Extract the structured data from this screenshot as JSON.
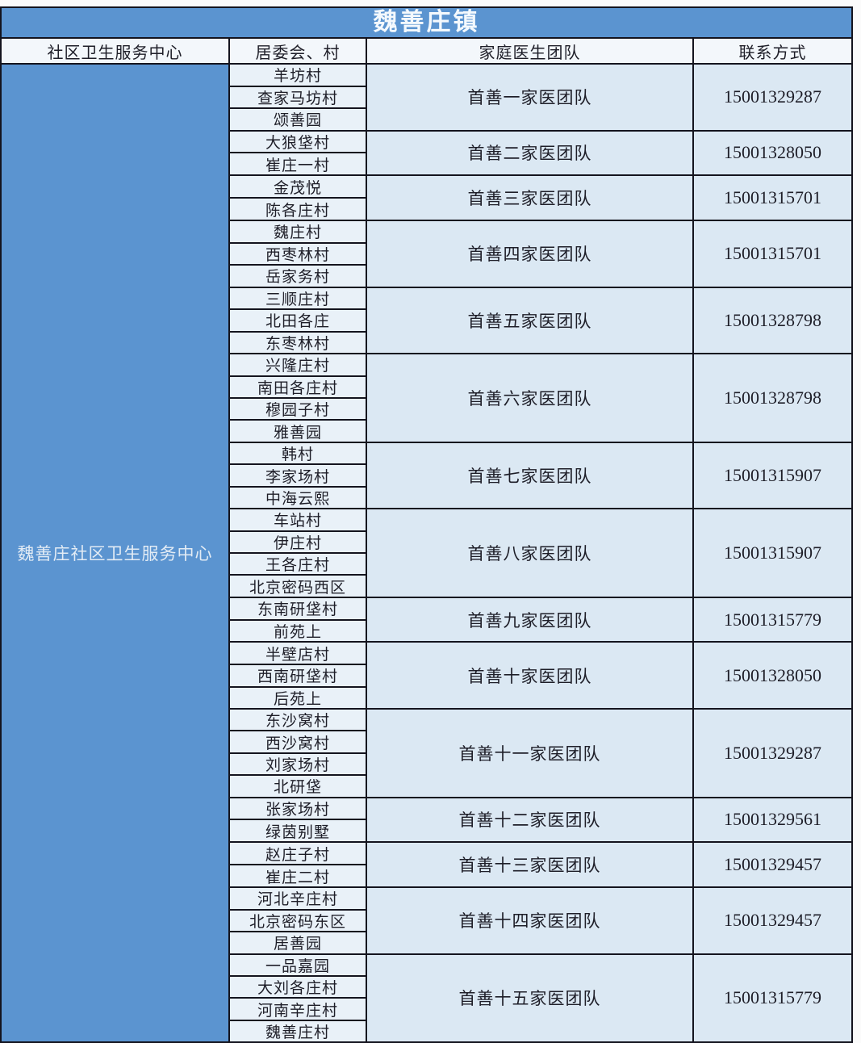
{
  "title": "魏善庄镇",
  "columns": {
    "center": "社区卫生服务中心",
    "village": "居委会、村",
    "team": "家庭医生团队",
    "phone": "联系方式"
  },
  "center_column": {
    "name": "魏善庄社区卫生服务中心"
  },
  "groups": [
    {
      "villages": [
        "羊坊村",
        "查家马坊村",
        "颂善园"
      ],
      "team": "首善一家医团队",
      "phone": "15001329287"
    },
    {
      "villages": [
        "大狼垡村",
        "崔庄一村"
      ],
      "team": "首善二家医团队",
      "phone": "15001328050"
    },
    {
      "villages": [
        "金茂悦",
        "陈各庄村"
      ],
      "team": "首善三家医团队",
      "phone": "15001315701"
    },
    {
      "villages": [
        "魏庄村",
        "西枣林村",
        "岳家务村"
      ],
      "team": "首善四家医团队",
      "phone": "15001315701"
    },
    {
      "villages": [
        "三顺庄村",
        "北田各庄",
        "东枣林村"
      ],
      "team": "首善五家医团队",
      "phone": "15001328798"
    },
    {
      "villages": [
        "兴隆庄村",
        "南田各庄村",
        "穆园子村",
        "雅善园"
      ],
      "team": "首善六家医团队",
      "phone": "15001328798"
    },
    {
      "villages": [
        "韩村",
        "李家场村",
        "中海云熙"
      ],
      "team": "首善七家医团队",
      "phone": "15001315907"
    },
    {
      "villages": [
        "车站村",
        "伊庄村",
        "王各庄村",
        "北京密码西区"
      ],
      "team": "首善八家医团队",
      "phone": "15001315907"
    },
    {
      "villages": [
        "东南研垡村",
        "前苑上"
      ],
      "team": "首善九家医团队",
      "phone": "15001315779"
    },
    {
      "villages": [
        "半壁店村",
        "西南研垡村",
        "后苑上"
      ],
      "team": "首善十家医团队",
      "phone": "15001328050"
    },
    {
      "villages": [
        "东沙窝村",
        "西沙窝村",
        "刘家场村",
        "北研垡"
      ],
      "team": "首善十一家医团队",
      "phone": "15001329287"
    },
    {
      "villages": [
        "张家场村",
        "绿茵别墅"
      ],
      "team": "首善十二家医团队",
      "phone": "15001329561"
    },
    {
      "villages": [
        "赵庄子村",
        "崔庄二村"
      ],
      "team": "首善十三家医团队",
      "phone": "15001329457"
    },
    {
      "villages": [
        "河北辛庄村",
        "北京密码东区",
        "居善园"
      ],
      "team": "首善十四家医团队",
      "phone": "15001329457"
    },
    {
      "villages": [
        "一品嘉园",
        "大刘各庄村",
        "河南辛庄村",
        "魏善庄村"
      ],
      "team": "首善十五家医团队",
      "phone": "15001315779"
    }
  ],
  "colors": {
    "accent_blue": "#5b94d0",
    "header_bg": "#f3f7fb",
    "village_cell_bg": "#e9f1f8",
    "team_cell_bg": "#dbe8f3",
    "border": "#14141e",
    "title_text": "#f4f9fd"
  }
}
